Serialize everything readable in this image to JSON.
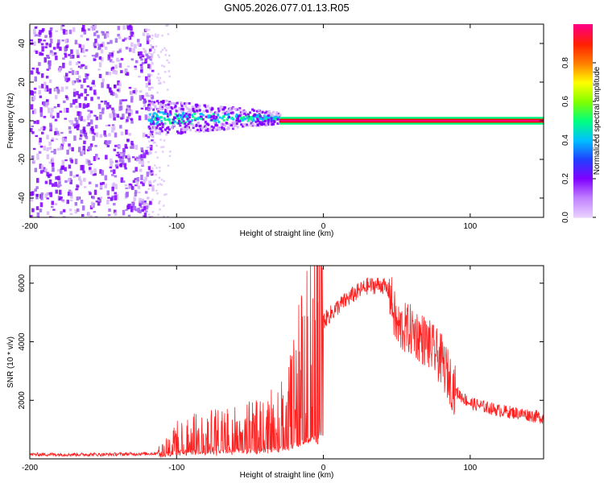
{
  "title": "GN05.2026.077.01.13.R05",
  "chart_data": [
    {
      "type": "heatmap",
      "xlabel": "Height of straight line (km)",
      "ylabel": "Frequency (Hz)",
      "xlim": [
        -200,
        150
      ],
      "ylim": [
        -50,
        50
      ],
      "xticks": [
        -200,
        -100,
        0,
        100
      ],
      "yticks": [
        -40,
        -20,
        0,
        20,
        40
      ],
      "colorbar": {
        "label": "Normalized spectral amplitude",
        "range": [
          0,
          1
        ],
        "ticks": [
          "0.0",
          "0.2",
          "0.4",
          "0.6",
          "0.8"
        ],
        "colors": [
          "#d8b8f8",
          "#8000ff",
          "#3030ff",
          "#00c0ff",
          "#00ff80",
          "#80ff00",
          "#ffff00",
          "#ff8000",
          "#ff0000",
          "#ff0080"
        ]
      },
      "regions": [
        {
          "name": "broadband noise",
          "x": [
            -200,
            -117
          ],
          "freq_range": [
            -50,
            50
          ],
          "amplitude": 0.1
        },
        {
          "name": "signal spread",
          "x": [
            -120,
            -30
          ],
          "freq_range": [
            -10,
            10
          ],
          "amplitude": 0.3
        },
        {
          "name": "carrier line",
          "x": [
            -30,
            150
          ],
          "freq": 0,
          "amplitude": 1.0
        }
      ]
    },
    {
      "type": "line",
      "xlabel": "Height of straight line (km)",
      "ylabel": "SNR (10 * v/v)",
      "xlim": [
        -200,
        150
      ],
      "ylim": [
        0,
        6600
      ],
      "xticks": [
        -200,
        -100,
        0,
        100
      ],
      "yticks": [
        2000,
        4000,
        6000
      ],
      "color": "#ff2020",
      "series": [
        {
          "name": "SNR",
          "x": [
            -200,
            -150,
            -115,
            -110,
            -100,
            -80,
            -60,
            -40,
            -25,
            -15,
            -10,
            -5,
            0,
            10,
            20,
            30,
            40,
            45,
            50,
            60,
            70,
            80,
            90,
            100,
            120,
            140,
            150
          ],
          "y": [
            150,
            150,
            180,
            300,
            700,
            900,
            1000,
            1100,
            1700,
            3000,
            3600,
            4300,
            4700,
            5200,
            5600,
            5900,
            5950,
            5700,
            4500,
            4400,
            4000,
            3400,
            2300,
            1900,
            1650,
            1500,
            1400
          ]
        }
      ],
      "spikes": [
        {
          "x": -4,
          "y": 6600
        }
      ]
    }
  ]
}
